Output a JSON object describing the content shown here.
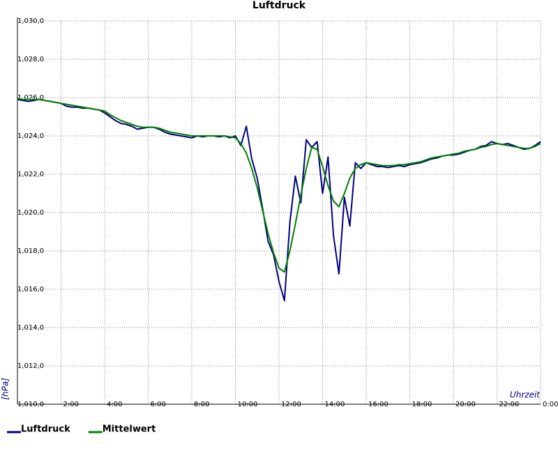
{
  "chart_data": {
    "type": "line",
    "title": "Luftdruck",
    "y_label": "[hPa]",
    "x_label": "Uhrzeit",
    "x": [
      0,
      0.25,
      0.5,
      0.75,
      1,
      1.25,
      1.5,
      1.75,
      2,
      2.25,
      2.5,
      2.75,
      3,
      3.25,
      3.5,
      3.75,
      4,
      4.25,
      4.5,
      4.75,
      5,
      5.25,
      5.5,
      5.75,
      6,
      6.25,
      6.5,
      6.75,
      7,
      7.25,
      7.5,
      7.75,
      8,
      8.25,
      8.5,
      8.75,
      9,
      9.25,
      9.5,
      9.75,
      10,
      10.25,
      10.5,
      10.75,
      11,
      11.25,
      11.5,
      11.75,
      12,
      12.25,
      12.5,
      12.75,
      13,
      13.25,
      13.5,
      13.75,
      14,
      14.25,
      14.5,
      14.75,
      15,
      15.25,
      15.5,
      15.75,
      16,
      16.25,
      16.5,
      16.75,
      17,
      17.25,
      17.5,
      17.75,
      18,
      18.25,
      18.5,
      18.75,
      19,
      19.25,
      19.5,
      19.75,
      20,
      20.25,
      20.5,
      20.75,
      21,
      21.25,
      21.5,
      21.75,
      22,
      22.25,
      22.5,
      22.75,
      23,
      23.25,
      23.5,
      23.75,
      24
    ],
    "series": [
      {
        "name": "Luftdruck",
        "color": "#000080",
        "values": [
          1025.9,
          1025.85,
          1025.8,
          1025.85,
          1025.9,
          1025.85,
          1025.8,
          1025.75,
          1025.7,
          1025.55,
          1025.5,
          1025.5,
          1025.45,
          1025.45,
          1025.4,
          1025.35,
          1025.2,
          1025.0,
          1024.8,
          1024.65,
          1024.6,
          1024.5,
          1024.35,
          1024.4,
          1024.45,
          1024.45,
          1024.35,
          1024.2,
          1024.1,
          1024.05,
          1024.0,
          1023.95,
          1023.9,
          1024.0,
          1023.95,
          1024.0,
          1024.0,
          1023.95,
          1024.0,
          1023.9,
          1024.0,
          1023.5,
          1024.5,
          1022.8,
          1021.8,
          1020.2,
          1018.5,
          1017.8,
          1016.4,
          1015.4,
          1019.5,
          1021.9,
          1020.5,
          1023.8,
          1023.4,
          1023.7,
          1021.0,
          1022.9,
          1018.8,
          1016.8,
          1020.8,
          1019.3,
          1022.6,
          1022.3,
          1022.6,
          1022.5,
          1022.4,
          1022.4,
          1022.35,
          1022.4,
          1022.45,
          1022.4,
          1022.5,
          1022.55,
          1022.6,
          1022.7,
          1022.8,
          1022.85,
          1022.95,
          1023.0,
          1023.0,
          1023.05,
          1023.15,
          1023.25,
          1023.3,
          1023.45,
          1023.5,
          1023.7,
          1023.6,
          1023.55,
          1023.6,
          1023.5,
          1023.4,
          1023.3,
          1023.35,
          1023.5,
          1023.7
        ]
      },
      {
        "name": "Mittelwert",
        "color": "#008000",
        "values": [
          1025.95,
          1025.9,
          1025.9,
          1025.9,
          1025.9,
          1025.85,
          1025.8,
          1025.75,
          1025.7,
          1025.65,
          1025.6,
          1025.55,
          1025.5,
          1025.45,
          1025.4,
          1025.35,
          1025.3,
          1025.1,
          1024.95,
          1024.8,
          1024.7,
          1024.6,
          1024.5,
          1024.45,
          1024.45,
          1024.45,
          1024.4,
          1024.3,
          1024.2,
          1024.15,
          1024.1,
          1024.05,
          1024.0,
          1024.0,
          1024.0,
          1024.0,
          1024.0,
          1024.0,
          1024.0,
          1023.95,
          1023.9,
          1023.6,
          1023.1,
          1022.3,
          1021.3,
          1020.1,
          1018.9,
          1017.9,
          1017.1,
          1016.9,
          1018.0,
          1019.4,
          1020.9,
          1022.3,
          1023.4,
          1023.3,
          1022.4,
          1021.4,
          1020.6,
          1020.3,
          1021.0,
          1021.8,
          1022.3,
          1022.5,
          1022.6,
          1022.55,
          1022.5,
          1022.45,
          1022.45,
          1022.45,
          1022.5,
          1022.5,
          1022.55,
          1022.6,
          1022.65,
          1022.75,
          1022.85,
          1022.9,
          1022.95,
          1023.0,
          1023.05,
          1023.1,
          1023.2,
          1023.25,
          1023.3,
          1023.4,
          1023.45,
          1023.55,
          1023.6,
          1023.55,
          1023.5,
          1023.45,
          1023.4,
          1023.35,
          1023.35,
          1023.45,
          1023.6
        ]
      }
    ],
    "xlim": [
      0,
      24
    ],
    "xticks": [
      {
        "value": 2,
        "label": "2:00"
      },
      {
        "value": 4,
        "label": "4:00"
      },
      {
        "value": 6,
        "label": "6:00"
      },
      {
        "value": 8,
        "label": "8:00"
      },
      {
        "value": 10,
        "label": "10:00"
      },
      {
        "value": 12,
        "label": "12:00"
      },
      {
        "value": 14,
        "label": "14:00"
      },
      {
        "value": 16,
        "label": "16:00"
      },
      {
        "value": 18,
        "label": "18:00"
      },
      {
        "value": 20,
        "label": "20:00"
      },
      {
        "value": 22,
        "label": "22:00"
      },
      {
        "value": 24,
        "label": "0:00"
      }
    ],
    "ylim": [
      1010,
      1030
    ],
    "yticks": [
      {
        "value": 1010,
        "label": "1,010,0"
      },
      {
        "value": 1012,
        "label": "1,012,0"
      },
      {
        "value": 1014,
        "label": "1,014,0"
      },
      {
        "value": 1016,
        "label": "1,016,0"
      },
      {
        "value": 1018,
        "label": "1,018,0"
      },
      {
        "value": 1020,
        "label": "1,020,0"
      },
      {
        "value": 1022,
        "label": "1,022,0"
      },
      {
        "value": 1024,
        "label": "1,024,0"
      },
      {
        "value": 1026,
        "label": "1,026,0"
      },
      {
        "value": 1028,
        "label": "1,028,0"
      },
      {
        "value": 1030,
        "label": "1,030,0"
      }
    ],
    "grid": true
  }
}
